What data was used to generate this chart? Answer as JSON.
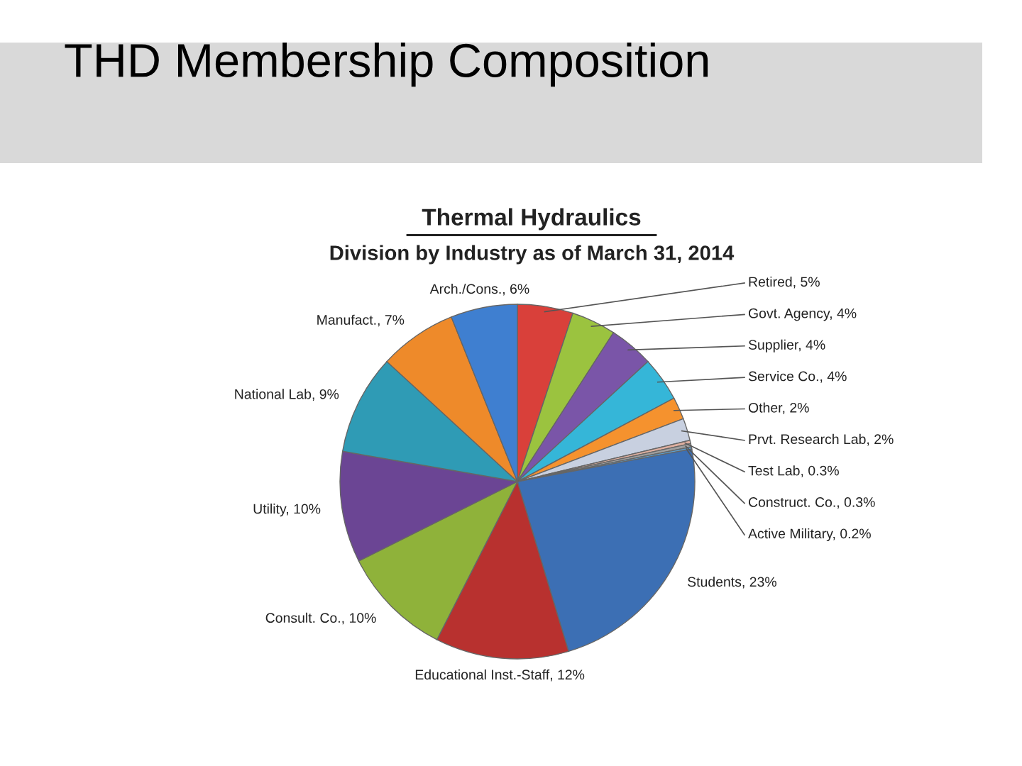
{
  "chart_data": {
    "type": "pie",
    "title": "Thermal Hydraulics",
    "subtitle": "Division by Industry as of March 31, 2014",
    "annotations": [
      "THD Membership Composition"
    ],
    "categories": [
      "Retired",
      "Govt. Agency",
      "Supplier",
      "Service Co.",
      "Other",
      "Prvt. Research Lab",
      "Test Lab",
      "Construct. Co.",
      "Active Military",
      "Students",
      "Educational Inst.-Staff",
      "Consult. Co.",
      "Utility",
      "National Lab",
      "Manufact.",
      "Arch./Cons."
    ],
    "values": [
      5,
      4,
      4,
      4,
      2,
      2,
      0.3,
      0.3,
      0.2,
      23,
      12,
      10,
      10,
      9,
      7,
      6
    ],
    "value_labels": [
      "5%",
      "4%",
      "4%",
      "4%",
      "2%",
      "2%",
      "0.3%",
      "0.3%",
      "0.2%",
      "23%",
      "12%",
      "10%",
      "10%",
      "9%",
      "7%",
      "6%"
    ],
    "colors": [
      "#d9403a",
      "#9bc33f",
      "#7a55a8",
      "#35b6d8",
      "#f5922e",
      "#c8d0e0",
      "#e0b0a0",
      "#a0a0a0",
      "#5ea0d0",
      "#3c6fb4",
      "#b8312f",
      "#8fb23a",
      "#6b4594",
      "#2f9bb5",
      "#ee8a2a",
      "#3f7fd0"
    ]
  }
}
